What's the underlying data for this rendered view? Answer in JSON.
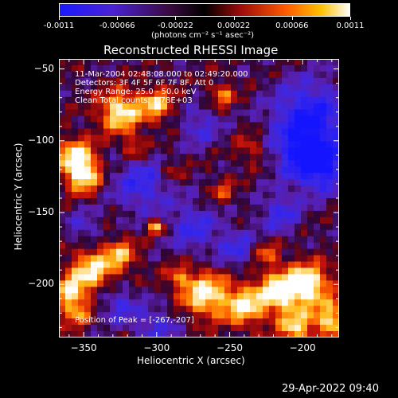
{
  "colorbar": {
    "ticks": [
      "-0.0011",
      "-0.00066",
      "-0.00022",
      "0.00022",
      "0.00066",
      "0.0011"
    ],
    "unit_label": "(photons cm⁻² s⁻¹ asec⁻²)",
    "range": [
      -0.0011,
      0.0011
    ]
  },
  "chart_data": {
    "type": "heatmap",
    "title": "Reconstructed RHESSI Image",
    "xlabel": "Heliocentric X (arcsec)",
    "ylabel": "Heliocentric Y (arcsec)",
    "xlim": [
      -367,
      -175
    ],
    "ylim": [
      -237,
      -43
    ],
    "xticks": [
      -350,
      -300,
      -250,
      -200
    ],
    "xtick_labels": [
      "−350",
      "−300",
      "−250",
      "−200"
    ],
    "yticks": [
      -50,
      -100,
      -150,
      -200
    ],
    "ytick_labels": [
      "−50",
      "−100",
      "−150",
      "−200"
    ],
    "colormap": "blue-purple-red-orange-yellow-white",
    "info_lines": [
      "11-Mar-2004 02:48:08.000 to 02:49:20.000",
      "Detectors: 3F 4F 5F 6F 7F 8F, Att 0",
      "Energy Range: 25.0 - 50.0 keV",
      "Clean    Total counts: 1.78E+03"
    ],
    "peak_text": "Position of Peak = [-267,-207]",
    "peak_position": [
      -267,
      -207
    ]
  },
  "timestamp": "29-Apr-2022 09:40"
}
